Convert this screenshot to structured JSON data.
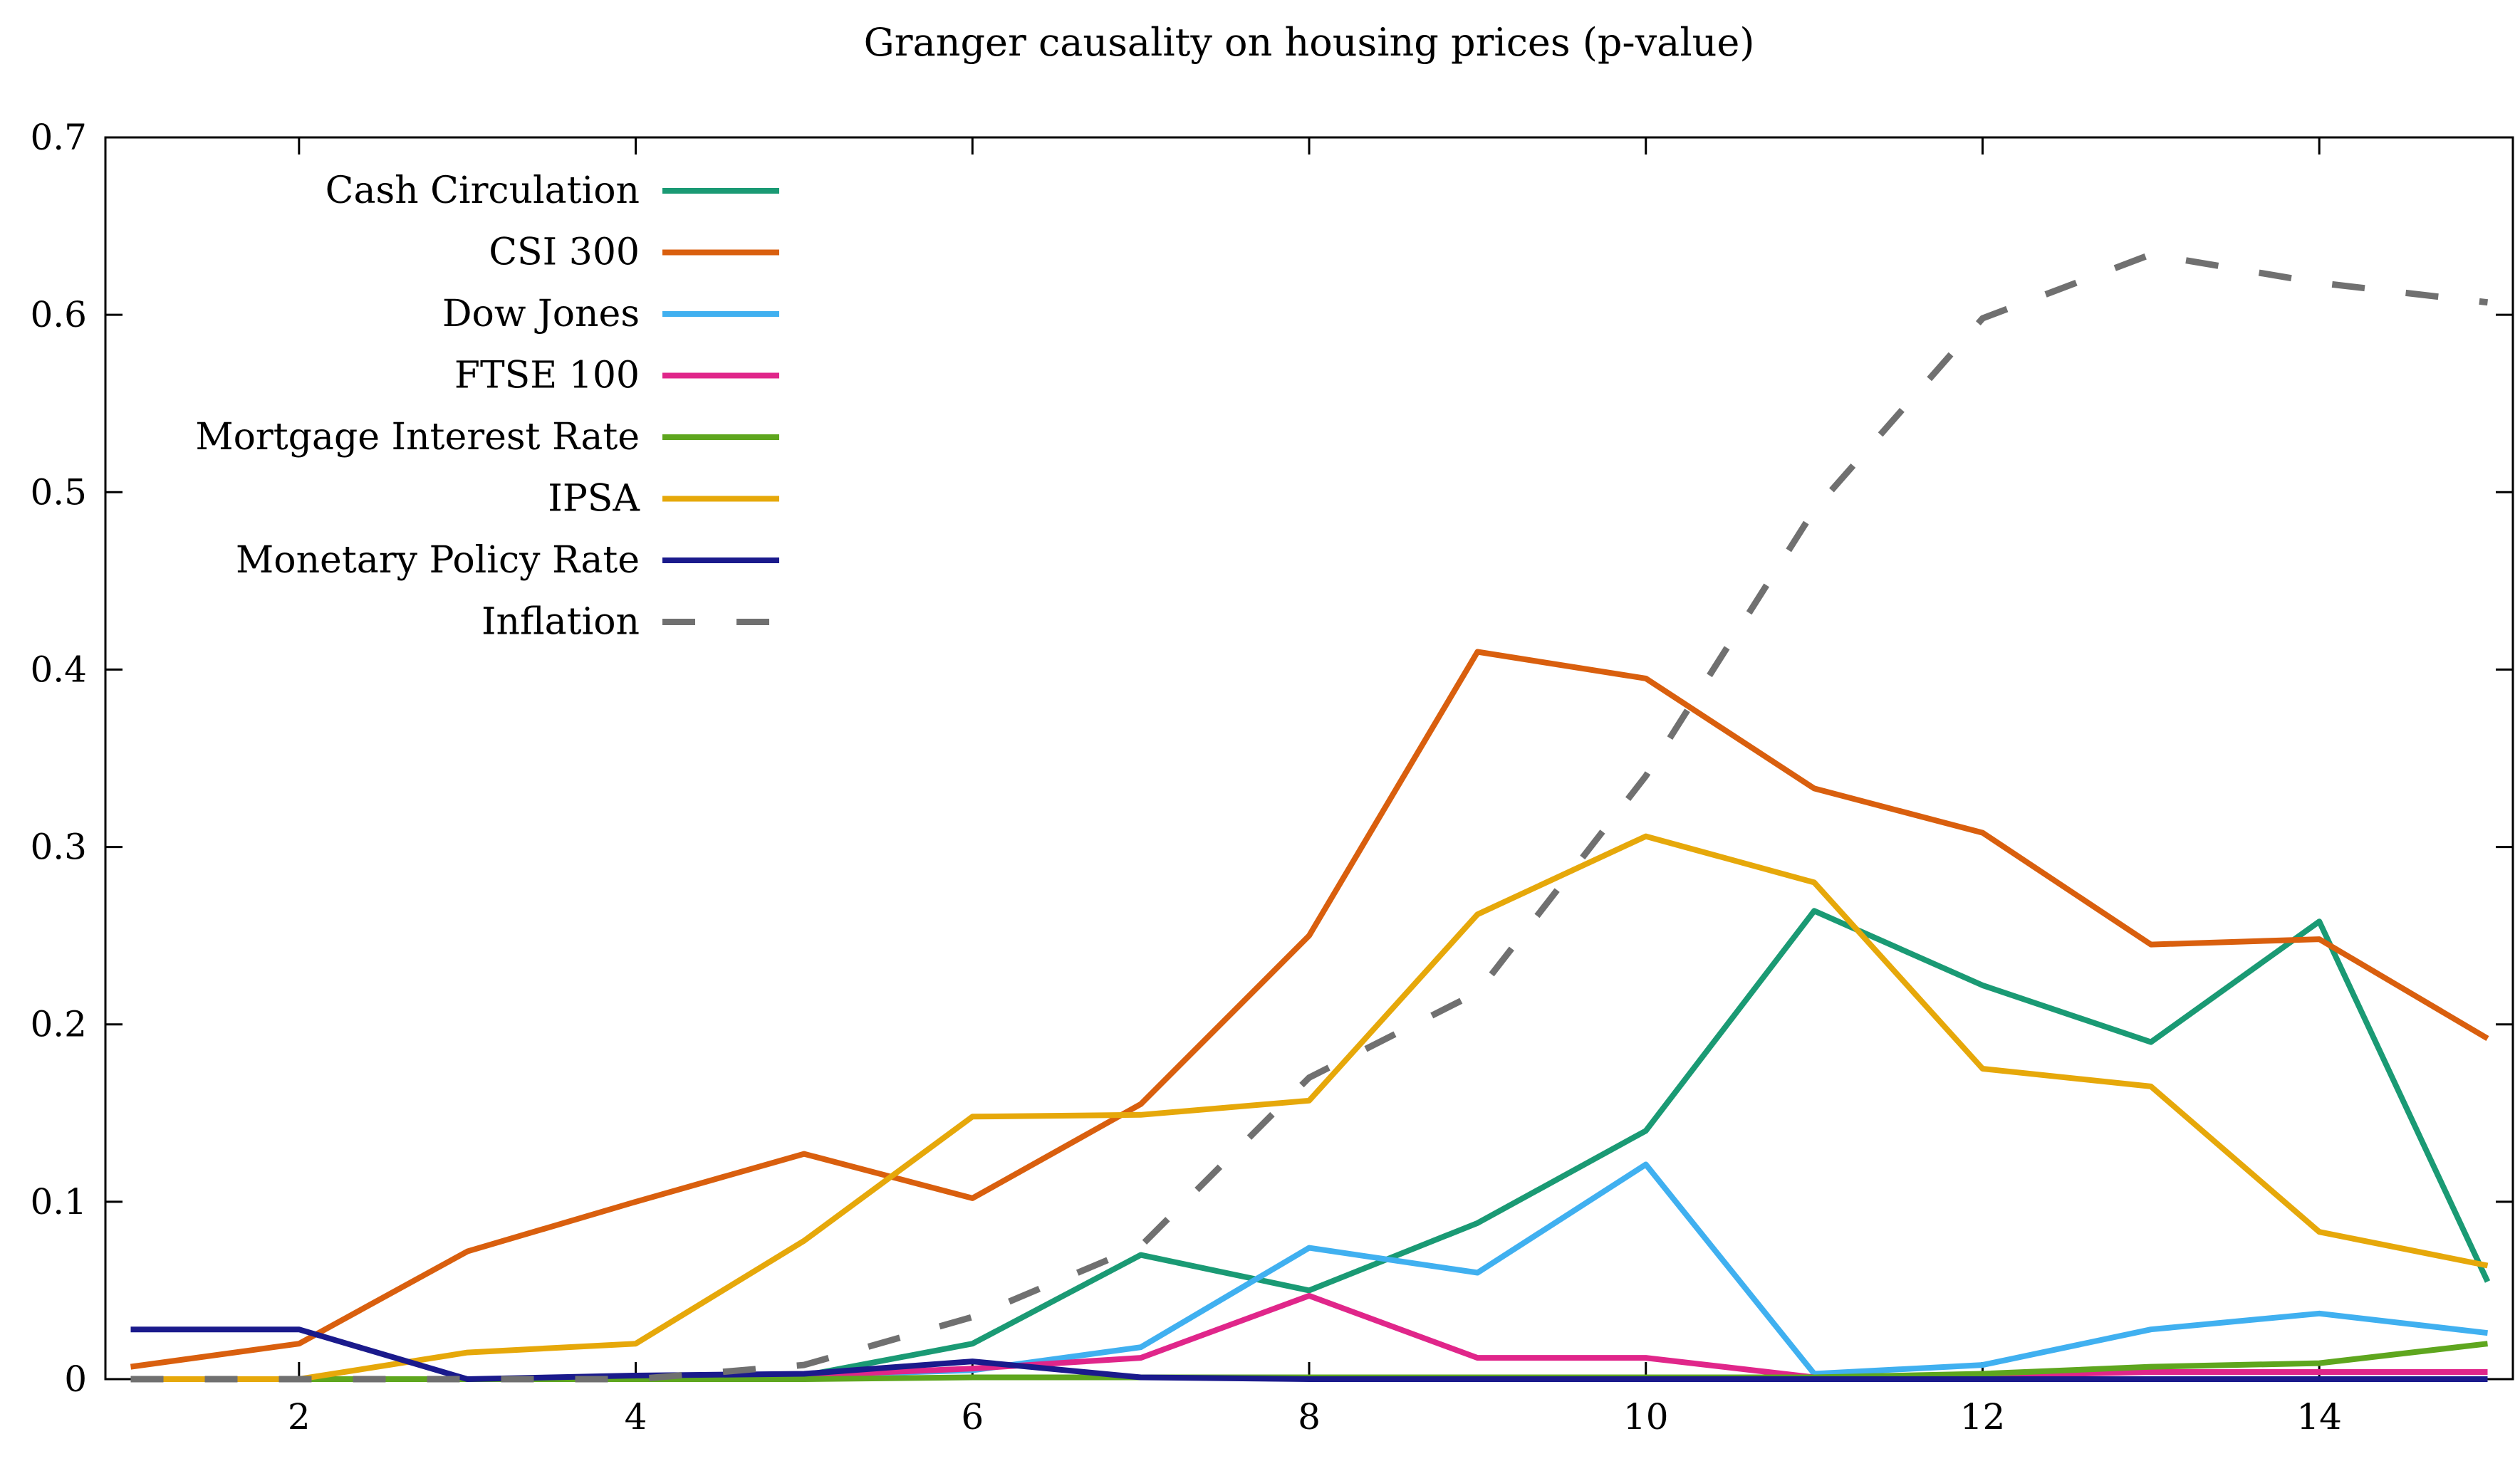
{
  "chart_data": {
    "type": "line",
    "title": "Granger causality on housing prices (p-value)",
    "xlabel": "",
    "ylabel": "",
    "xlim": [
      0.85,
      15.15
    ],
    "ylim": [
      0,
      0.7
    ],
    "x_ticks": [
      2,
      4,
      6,
      8,
      10,
      12,
      14
    ],
    "y_ticks": [
      0,
      0.1,
      0.2,
      0.3,
      0.4,
      0.5,
      0.6,
      0.7
    ],
    "x_tick_labels": [
      "2",
      "4",
      "6",
      "8",
      "10",
      "12",
      "14"
    ],
    "y_tick_labels": [
      "0",
      "0.1",
      "0.2",
      "0.3",
      "0.4",
      "0.5",
      "0.6",
      "0.7"
    ],
    "grid": false,
    "legend_position": "top-left",
    "x": [
      1,
      2,
      3,
      4,
      5,
      6,
      7,
      8,
      9,
      10,
      11,
      12,
      13,
      14,
      15
    ],
    "series": [
      {
        "name": "Cash Circulation",
        "color": "#1a9a74",
        "dash": false,
        "values": [
          0.0,
          0.0,
          0.0,
          0.0,
          0.002,
          0.02,
          0.07,
          0.05,
          0.088,
          0.14,
          0.264,
          0.222,
          0.19,
          0.258,
          0.055
        ]
      },
      {
        "name": "CSI 300",
        "color": "#d95f0e",
        "dash": false,
        "values": [
          0.007,
          0.02,
          0.072,
          0.1,
          0.127,
          0.102,
          0.155,
          0.25,
          0.41,
          0.395,
          0.333,
          0.308,
          0.245,
          0.248,
          0.192
        ]
      },
      {
        "name": "Dow Jones",
        "color": "#40b0f0",
        "dash": false,
        "values": [
          0.0,
          0.0,
          0.0,
          0.0,
          0.002,
          0.005,
          0.018,
          0.074,
          0.06,
          0.121,
          0.003,
          0.008,
          0.028,
          0.037,
          0.026
        ]
      },
      {
        "name": "FTSE 100",
        "color": "#e0268a",
        "dash": false,
        "values": [
          0.0,
          0.0,
          0.0,
          0.0,
          0.002,
          0.006,
          0.012,
          0.047,
          0.012,
          0.012,
          0.001,
          0.002,
          0.004,
          0.004,
          0.004
        ]
      },
      {
        "name": "Mortgage Interest Rate",
        "color": "#5ea61e",
        "dash": false,
        "values": [
          0.0,
          0.0,
          0.0,
          0.0,
          0.0,
          0.001,
          0.001,
          0.001,
          0.001,
          0.001,
          0.001,
          0.003,
          0.007,
          0.009,
          0.02
        ]
      },
      {
        "name": "IPSA",
        "color": "#e6a80a",
        "dash": false,
        "values": [
          0.0,
          0.0,
          0.015,
          0.02,
          0.078,
          0.148,
          0.149,
          0.157,
          0.262,
          0.306,
          0.28,
          0.175,
          0.165,
          0.083,
          0.064
        ]
      },
      {
        "name": "Monetary Policy Rate",
        "color": "#1a1a8c",
        "dash": false,
        "values": [
          0.028,
          0.028,
          0.0,
          0.002,
          0.003,
          0.01,
          0.001,
          0.0,
          0.0,
          0.0,
          0.0,
          0.0,
          0.0,
          0.0,
          0.0
        ]
      },
      {
        "name": "Inflation",
        "color": "#707070",
        "dash": true,
        "values": [
          0.0,
          0.0,
          0.0,
          0.0,
          0.008,
          0.035,
          0.075,
          0.17,
          0.218,
          0.34,
          0.49,
          0.598,
          0.634,
          0.618,
          0.607
        ]
      }
    ]
  }
}
